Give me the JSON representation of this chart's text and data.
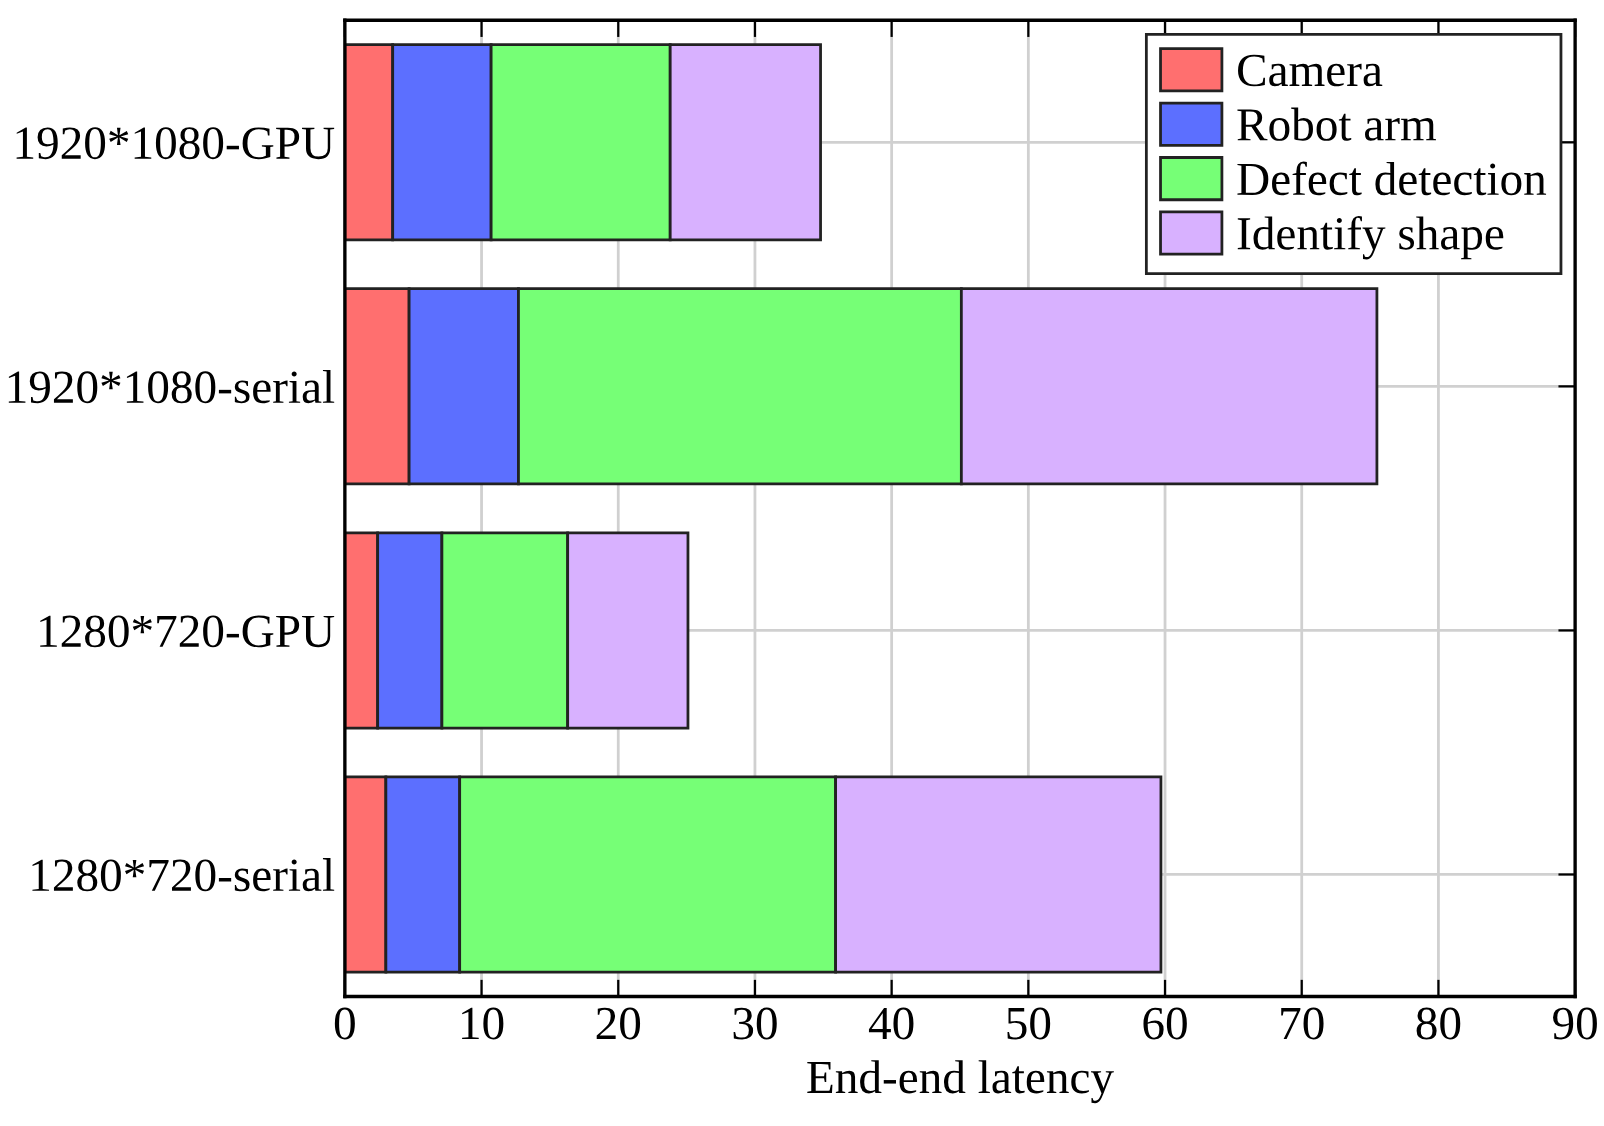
{
  "chart_data": {
    "type": "bar",
    "orientation": "horizontal",
    "stacked": true,
    "xlabel": "End-end latency",
    "categories": [
      "1920*1080-GPU",
      "1920*1080-serial",
      "1280*720-GPU",
      "1280*720-serial"
    ],
    "series": [
      {
        "name": "Camera",
        "color": "#ff6f6f",
        "values": [
          3.5,
          4.7,
          2.4,
          3.0
        ]
      },
      {
        "name": "Robot arm",
        "color": "#5c6fff",
        "values": [
          7.2,
          8.0,
          4.7,
          5.4
        ]
      },
      {
        "name": "Defect detection",
        "color": "#76ff76",
        "values": [
          13.1,
          32.4,
          9.2,
          27.5
        ]
      },
      {
        "name": "Identify shape",
        "color": "#d8b1ff",
        "values": [
          11.0,
          30.4,
          8.8,
          23.8
        ]
      }
    ],
    "xlim": [
      0,
      90
    ],
    "xticks": [
      0,
      10,
      20,
      30,
      40,
      50,
      60,
      70,
      80,
      90
    ],
    "grid": true,
    "legend": "top right"
  }
}
